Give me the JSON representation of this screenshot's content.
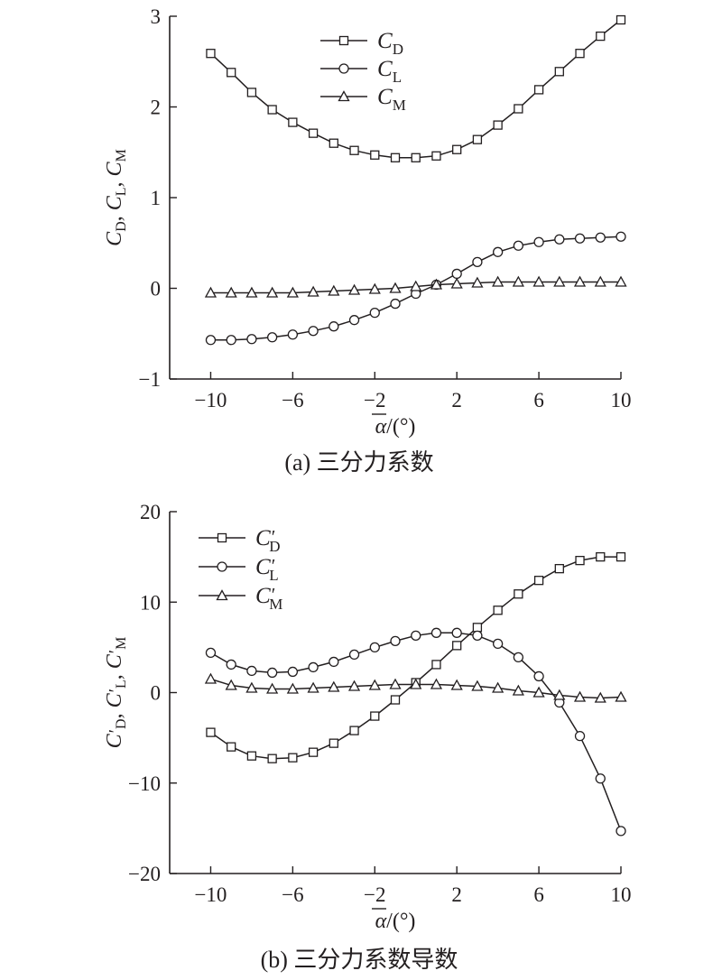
{
  "chart_data": [
    {
      "type": "line",
      "caption": "(a) 三分力系数",
      "xlabel": "α/(°)",
      "xlabel_base": "α",
      "xlabel_suffix": "/(°)",
      "ylabel": "CD, CL, CM",
      "ylabel_parts": [
        {
          "base": "C",
          "sub": "D",
          "sep": ", "
        },
        {
          "base": "C",
          "sub": "L",
          "sep": ", "
        },
        {
          "base": "C",
          "sub": "M",
          "sep": ""
        }
      ],
      "xlim": [
        -12,
        10
      ],
      "ylim": [
        -1,
        3
      ],
      "xticks": [
        -10,
        -6,
        -2,
        2,
        6,
        10
      ],
      "yticks": [
        -1,
        0,
        1,
        2,
        3
      ],
      "legend_position": "top-center",
      "x": [
        -10,
        -9,
        -8,
        -7,
        -6,
        -5,
        -4,
        -3,
        -2,
        -1,
        0,
        1,
        2,
        3,
        4,
        5,
        6,
        7,
        8,
        9,
        10
      ],
      "series": [
        {
          "name": "CD",
          "label_base": "C",
          "label_sub": "D",
          "marker": "square",
          "values": [
            2.59,
            2.38,
            2.16,
            1.97,
            1.83,
            1.71,
            1.6,
            1.52,
            1.47,
            1.44,
            1.44,
            1.46,
            1.53,
            1.64,
            1.8,
            1.98,
            2.19,
            2.39,
            2.59,
            2.78,
            2.96
          ]
        },
        {
          "name": "CL",
          "label_base": "C",
          "label_sub": "L",
          "marker": "circle",
          "values": [
            -0.57,
            -0.57,
            -0.56,
            -0.54,
            -0.51,
            -0.47,
            -0.42,
            -0.35,
            -0.27,
            -0.17,
            -0.06,
            0.04,
            0.16,
            0.29,
            0.4,
            0.47,
            0.51,
            0.54,
            0.55,
            0.56,
            0.57
          ]
        },
        {
          "name": "CM",
          "label_base": "C",
          "label_sub": "M",
          "marker": "triangle",
          "values": [
            -0.05,
            -0.05,
            -0.05,
            -0.05,
            -0.05,
            -0.04,
            -0.03,
            -0.02,
            -0.01,
            0.0,
            0.02,
            0.04,
            0.05,
            0.06,
            0.07,
            0.07,
            0.07,
            0.07,
            0.07,
            0.07,
            0.07
          ]
        }
      ]
    },
    {
      "type": "line",
      "caption": "(b) 三分力系数导数",
      "xlabel": "α/(°)",
      "xlabel_base": "α",
      "xlabel_suffix": "/(°)",
      "ylabel": "C′D, C′L, C′M",
      "ylabel_parts": [
        {
          "base": "C",
          "sup": "′",
          "sub": "D",
          "sep": ", "
        },
        {
          "base": "C",
          "sup": "′",
          "sub": "L",
          "sep": ", "
        },
        {
          "base": "C",
          "sup": "′",
          "sub": "M",
          "sep": ""
        }
      ],
      "xlim": [
        -12,
        10
      ],
      "ylim": [
        -20,
        20
      ],
      "xticks": [
        -10,
        -6,
        -2,
        2,
        6,
        10
      ],
      "yticks": [
        -20,
        -10,
        0,
        10,
        20
      ],
      "legend_position": "top-left",
      "x": [
        -10,
        -9,
        -8,
        -7,
        -6,
        -5,
        -4,
        -3,
        -2,
        -1,
        0,
        1,
        2,
        3,
        4,
        5,
        6,
        7,
        8,
        9,
        10
      ],
      "series": [
        {
          "name": "C′D",
          "label_base": "C",
          "label_sup": "′",
          "label_sub": "D",
          "marker": "square",
          "values": [
            -4.4,
            -6.0,
            -7.0,
            -7.3,
            -7.2,
            -6.6,
            -5.6,
            -4.2,
            -2.6,
            -0.8,
            1.1,
            3.1,
            5.2,
            7.2,
            9.1,
            10.9,
            12.4,
            13.7,
            14.6,
            15.0,
            15.0
          ]
        },
        {
          "name": "C′L",
          "label_base": "C",
          "label_sup": "′",
          "label_sub": "L",
          "marker": "circle",
          "values": [
            4.4,
            3.1,
            2.4,
            2.2,
            2.3,
            2.8,
            3.4,
            4.2,
            5.0,
            5.7,
            6.3,
            6.6,
            6.6,
            6.3,
            5.4,
            3.9,
            1.8,
            -1.1,
            -4.8,
            -9.5,
            -15.3
          ]
        },
        {
          "name": "C′M",
          "label_base": "C",
          "label_sup": "′",
          "label_sub": "M",
          "marker": "triangle",
          "values": [
            1.5,
            0.8,
            0.5,
            0.4,
            0.4,
            0.5,
            0.6,
            0.7,
            0.8,
            0.9,
            0.9,
            0.9,
            0.8,
            0.7,
            0.5,
            0.2,
            0.0,
            -0.3,
            -0.5,
            -0.6,
            -0.5
          ]
        }
      ]
    }
  ]
}
